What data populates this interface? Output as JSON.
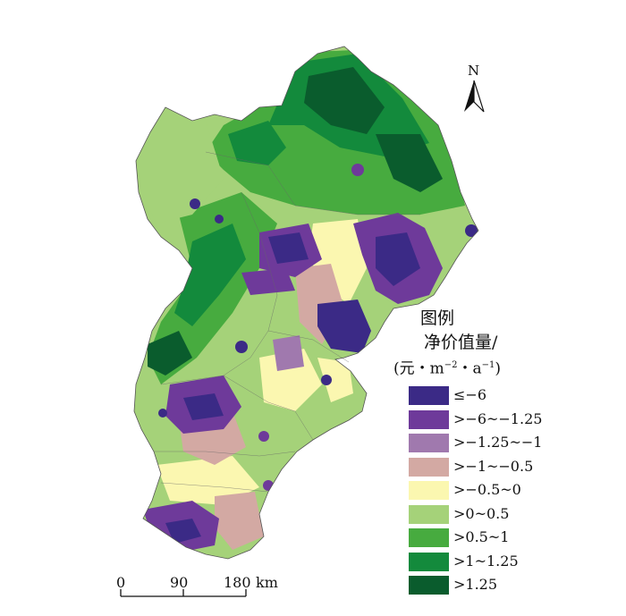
{
  "north_arrow": {
    "label": "N"
  },
  "legend": {
    "title": "图例",
    "subtitle": "净价值量/",
    "unit_text": "(元・m",
    "unit_exp1": "−2",
    "unit_mid": "・a",
    "unit_exp2": "−1",
    "unit_close": ")",
    "items": [
      {
        "label": "≤−6",
        "color": "#3b2a86"
      },
      {
        "label": ">−6~−1.25",
        "color": "#6e3a9a"
      },
      {
        "label": ">−1.25~−1",
        "color": "#a079ae"
      },
      {
        "label": ">−1~−0.5",
        "color": "#d3a9a3"
      },
      {
        "label": ">−0.5~0",
        "color": "#fbf7b0"
      },
      {
        "label": ">0~0.5",
        "color": "#a5d279"
      },
      {
        "label": ">0.5~1",
        "color": "#47ab3f"
      },
      {
        "label": ">1~1.25",
        "color": "#138a3c"
      },
      {
        "label": ">1.25",
        "color": "#0a5c2d"
      }
    ]
  },
  "scale_bar": {
    "ticks": [
      "0",
      "90",
      "180"
    ],
    "unit": "km"
  }
}
